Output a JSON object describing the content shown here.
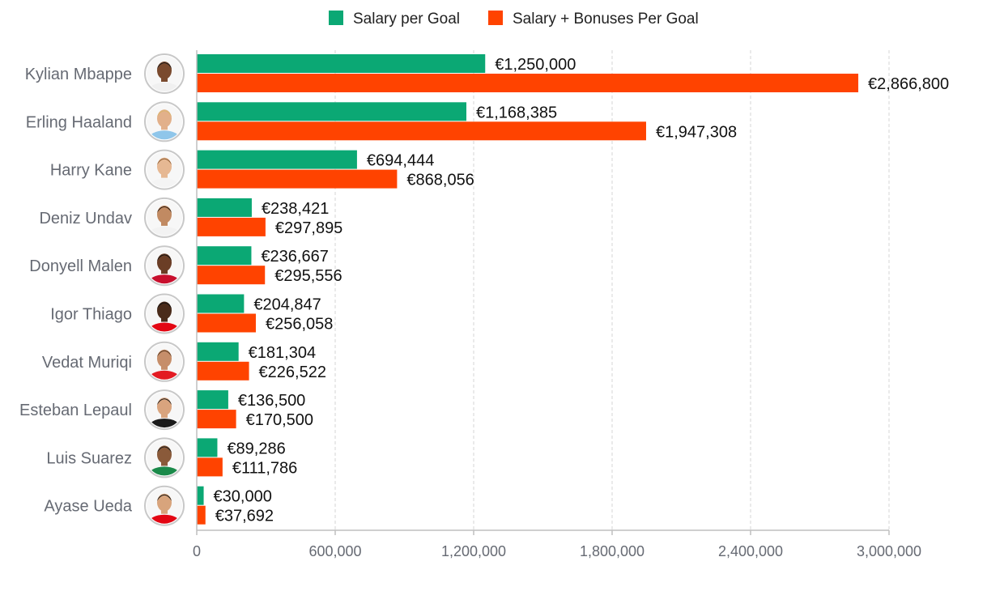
{
  "chart_data": {
    "type": "bar",
    "orientation": "horizontal",
    "categories": [
      "Kylian Mbappe",
      "Erling Haaland",
      "Harry Kane",
      "Deniz Undav",
      "Donyell Malen",
      "Igor Thiago",
      "Vedat Muriqi",
      "Esteban Lepaul",
      "Luis Suarez",
      "Ayase Ueda"
    ],
    "series": [
      {
        "name": "Salary per Goal",
        "color": "#0ba874",
        "values": [
          1250000,
          1168385,
          694444,
          238421,
          236667,
          204847,
          181304,
          136500,
          89286,
          30000
        ],
        "labels": [
          "€1,250,000",
          "€1,168,385",
          "€694,444",
          "€238,421",
          "€236,667",
          "€204,847",
          "€181,304",
          "€136,500",
          "€89,286",
          "€30,000"
        ]
      },
      {
        "name": "Salary + Bonuses Per Goal",
        "color": "#ff4300",
        "values": [
          2866800,
          1947308,
          868056,
          297895,
          295556,
          256058,
          226522,
          170500,
          111786,
          37692
        ],
        "labels": [
          "€2,866,800",
          "€1,947,308",
          "€868,056",
          "€297,895",
          "€295,556",
          "€256,058",
          "€226,522",
          "€170,500",
          "€111,786",
          "€37,692"
        ]
      }
    ],
    "xlim": [
      0,
      3000000
    ],
    "ticks": [
      0,
      600000,
      1200000,
      1800000,
      2400000,
      3000000
    ],
    "tick_labels": [
      "0",
      "600,000",
      "1,200,000",
      "1,800,000",
      "2,400,000",
      "3,000,000"
    ],
    "grid": true,
    "legend": "top-center"
  }
}
